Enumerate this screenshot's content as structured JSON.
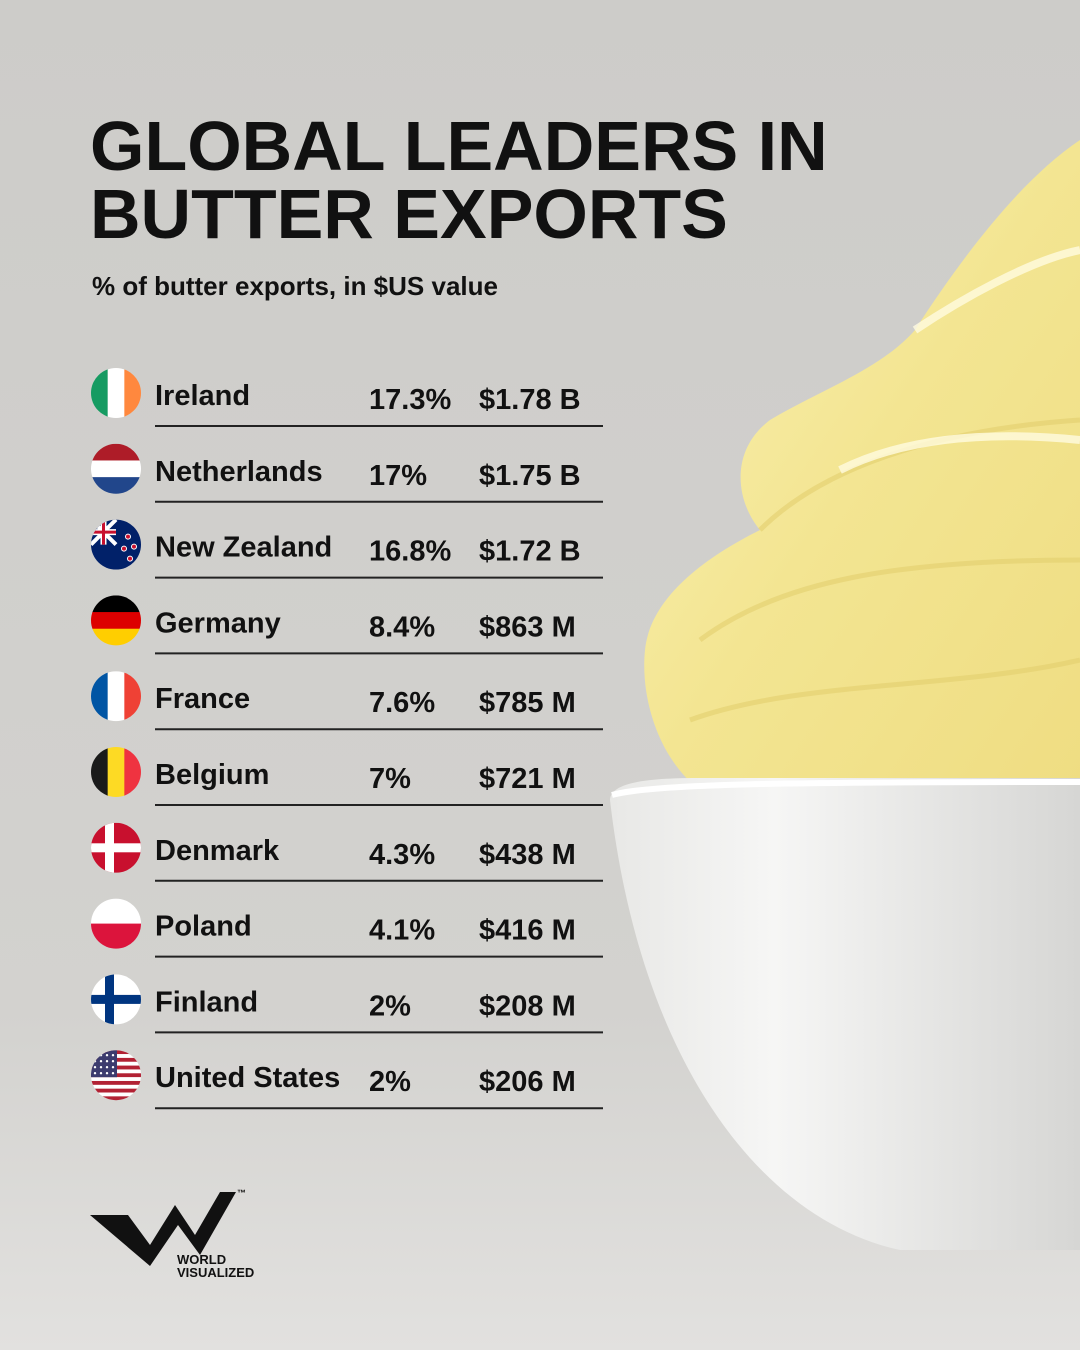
{
  "header": {
    "title": [
      "GLOBAL LEADERS IN",
      "BUTTER EXPORTS"
    ],
    "subtitle": "% of butter exports, in $US value"
  },
  "table": {
    "rows": [
      {
        "country": "Ireland",
        "share": "17.3%",
        "value": "$1.78 B"
      },
      {
        "country": "Netherlands",
        "share": "17%",
        "value": "$1.75 B"
      },
      {
        "country": "New Zealand",
        "share": "16.8%",
        "value": "$1.72 B"
      },
      {
        "country": "Germany",
        "share": "8.4%",
        "value": "$863 M"
      },
      {
        "country": "France",
        "share": "7.6%",
        "value": "$785 M"
      },
      {
        "country": "Belgium",
        "share": "7%",
        "value": "$721 M"
      },
      {
        "country": "Denmark",
        "share": "4.3%",
        "value": "$438 M"
      },
      {
        "country": "Poland",
        "share": "4.1%",
        "value": "$416 M"
      },
      {
        "country": "Finland",
        "share": "2%",
        "value": "$208 M"
      },
      {
        "country": "United States",
        "share": "2%",
        "value": "$206 M"
      }
    ]
  },
  "logo": {
    "lines": [
      "WORLD",
      "VISUALIZED"
    ],
    "mark": "™"
  }
}
